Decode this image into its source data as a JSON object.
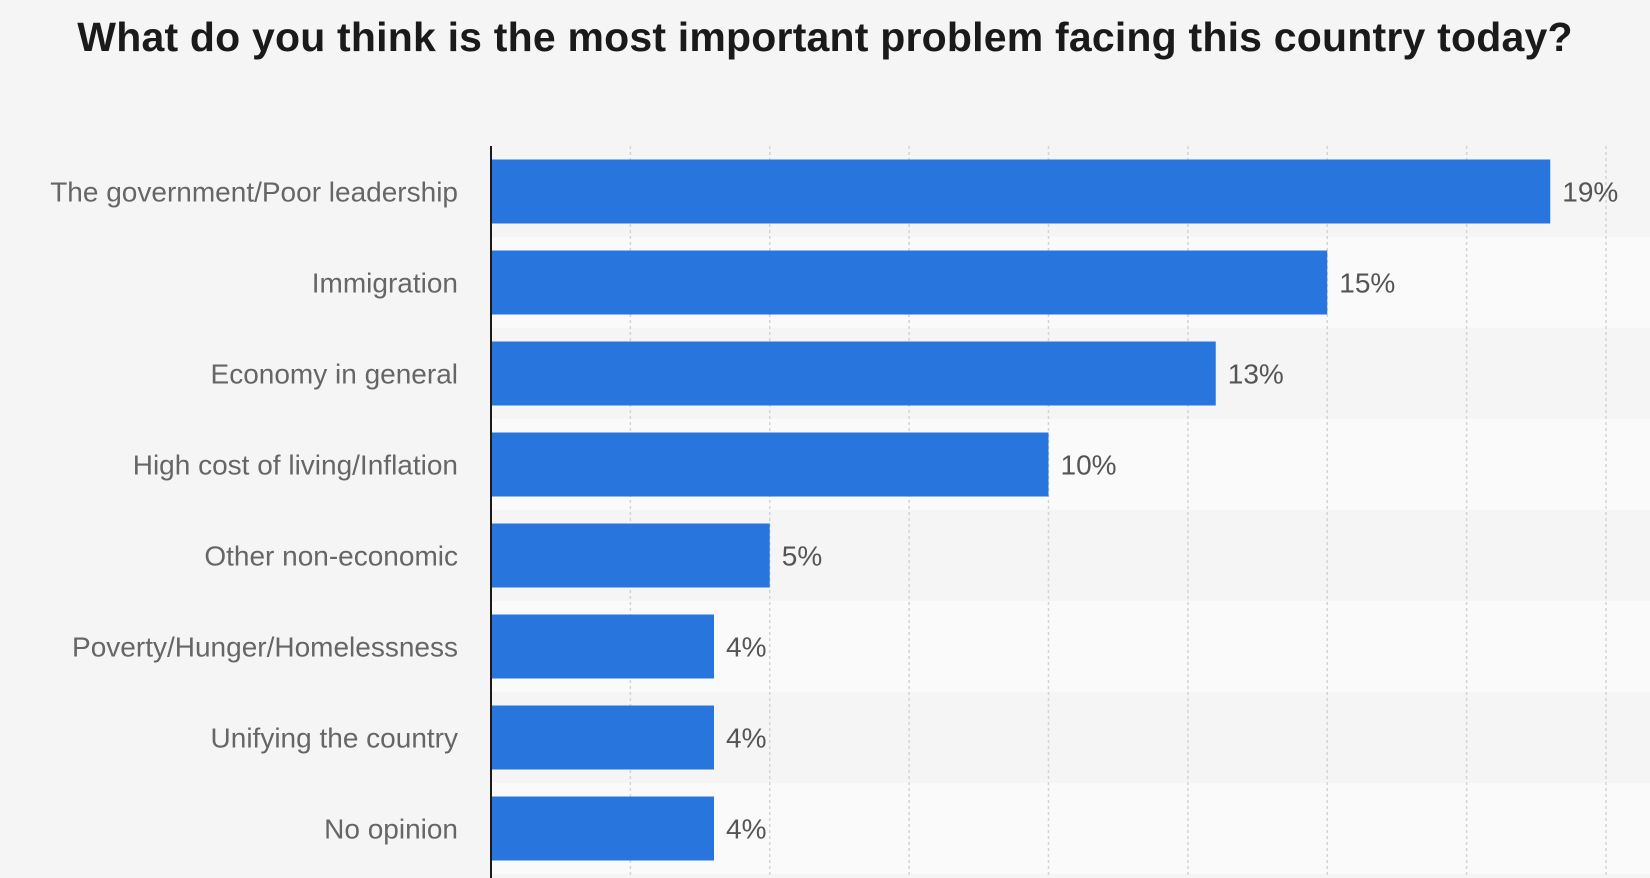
{
  "chart_data": {
    "type": "bar",
    "orientation": "horizontal",
    "title": "What do you think is the most important problem facing this country today?",
    "categories": [
      "The government/Poor leadership",
      "Immigration",
      "Economy in general",
      "High cost of living/Inflation",
      "Other non-economic",
      "Poverty/Hunger/Homelessness",
      "Unifying the country",
      "No opinion"
    ],
    "values": [
      19,
      15,
      13,
      10,
      5,
      4,
      4,
      4
    ],
    "value_labels": [
      "19%",
      "15%",
      "13%",
      "10%",
      "5%",
      "4%",
      "4%",
      "4%"
    ],
    "unit": "%",
    "xlim": [
      0,
      20
    ],
    "grid": true,
    "legend": "none",
    "bar_color": "#2876dd"
  }
}
